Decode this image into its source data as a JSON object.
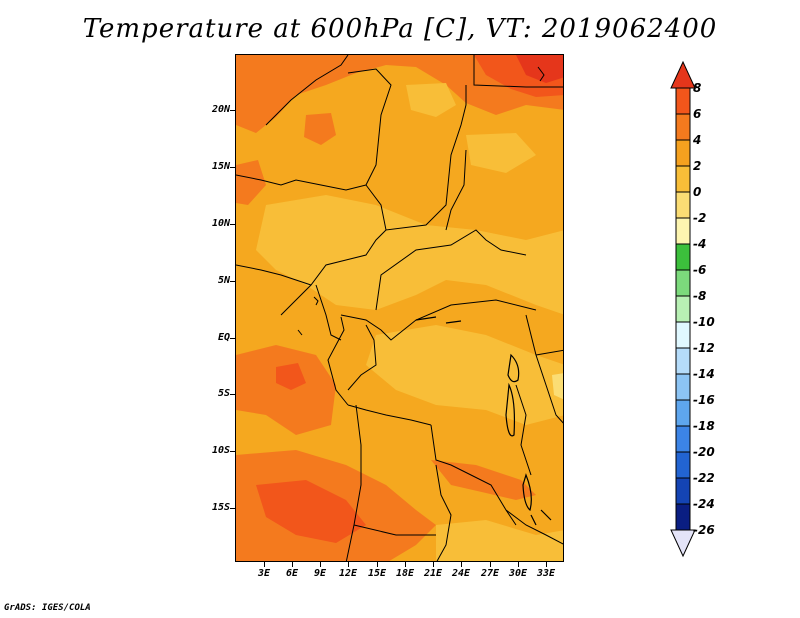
{
  "title": "Temperature at 600hPa [C], VT: 2019062400",
  "footer": "GrADS: IGES/COLA",
  "axes": {
    "y_ticks": [
      "20N",
      "15N",
      "10N",
      "5N",
      "EQ",
      "5S",
      "10S",
      "15S"
    ],
    "x_ticks": [
      "3E",
      "6E",
      "9E",
      "12E",
      "15E",
      "18E",
      "21E",
      "24E",
      "27E",
      "30E",
      "33E"
    ],
    "lat_range": [
      -19.5,
      24.5
    ],
    "lon_range": [
      0.5,
      34.5
    ]
  },
  "colorbar": {
    "labels": [
      "8",
      "6",
      "4",
      "2",
      "0",
      "-2",
      "-4",
      "-6",
      "-8",
      "-10",
      "-12",
      "-14",
      "-16",
      "-18",
      "-20",
      "-22",
      "-24",
      "-26"
    ],
    "colors": {
      "above_8": "#e5361b",
      "6_to_8": "#f2561b",
      "4_to_6": "#f47a1e",
      "2_to_4": "#f5a11f",
      "0_to_2": "#f8be38",
      "m2_to_0": "#fbdd74",
      "m4_to_m2": "#fdf5b0",
      "m6_to_m4": "#3cbf3c",
      "m8_to_m6": "#7cda7c",
      "m10_to_m8": "#b8f0b4",
      "m12_to_m10": "#e0f8ff",
      "m14_to_m12": "#b5dcfa",
      "m16_to_m14": "#8cc4f4",
      "m18_to_m16": "#5ea6ee",
      "m20_to_m18": "#3c84e6",
      "m22_to_m20": "#2264d2",
      "m24_to_m22": "#1444b4",
      "m26_to_m24": "#0a1e82",
      "below_m26": "#e4e4f8"
    }
  },
  "chart_data": {
    "type": "heatmap",
    "title": "Temperature at 600hPa [C], VT: 2019062400",
    "variable": "Temperature at 600hPa",
    "units": "C",
    "valid_time": "2019062400",
    "lon_range": [
      0.5,
      34.5
    ],
    "lat_range": [
      -19.5,
      24.5
    ],
    "x_tick_labels": [
      "3E",
      "6E",
      "9E",
      "12E",
      "15E",
      "18E",
      "21E",
      "24E",
      "27E",
      "30E",
      "33E"
    ],
    "y_tick_labels": [
      "20N",
      "15N",
      "10N",
      "5N",
      "EQ",
      "5S",
      "10S",
      "15S"
    ],
    "value_range_observed": [
      0,
      8
    ],
    "dominant_level": "2 to 4",
    "warm_regions": [
      "northern Sahara (>6)",
      "northeast corner (>8)",
      "Namibia/Angola southwest (4 to 6)"
    ],
    "cool_regions": [
      "Central African Republic / Cameroon (0 to 2)",
      "Congo basin east (0 to 2)"
    ]
  }
}
